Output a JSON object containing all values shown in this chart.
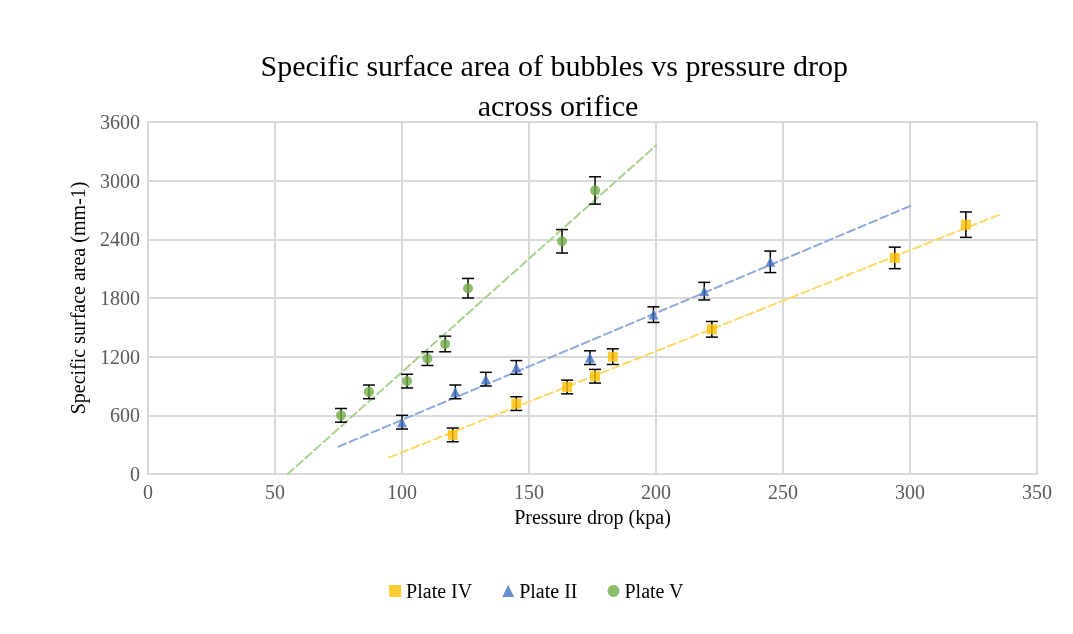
{
  "chart_data": {
    "type": "scatter",
    "title": "Specific surface area of bubbles vs pressure drop across orifice",
    "xlabel": "Pressure drop (kpa)",
    "ylabel": "Specific surface area (mm-1)",
    "xlim": [
      0,
      350
    ],
    "xticks": [
      0,
      50,
      100,
      150,
      200,
      250,
      300,
      350
    ],
    "ylim": [
      0,
      3600
    ],
    "yticks": [
      0,
      600,
      1200,
      1800,
      2400,
      3000,
      3600
    ],
    "grid": true,
    "legend": "bottom",
    "series": [
      {
        "name": "Plate IV",
        "color": "#ffc000",
        "marker": "square",
        "x": [
          120,
          145,
          165,
          176,
          183,
          222,
          294,
          322
        ],
        "values": [
          400,
          720,
          890,
          1000,
          1200,
          1480,
          2210,
          2550
        ],
        "errors": [
          70,
          70,
          70,
          70,
          80,
          80,
          110,
          130
        ]
      },
      {
        "name": "Plate II",
        "color": "#4472c4",
        "marker": "triangle",
        "x": [
          100,
          121,
          133,
          145,
          174,
          199,
          219,
          245
        ],
        "values": [
          530,
          840,
          970,
          1090,
          1190,
          1630,
          1870,
          2170
        ],
        "errors": [
          70,
          70,
          70,
          70,
          70,
          80,
          90,
          110
        ]
      },
      {
        "name": "Plate V",
        "color": "#70ad47",
        "marker": "circle",
        "x": [
          76,
          87,
          102,
          110,
          117,
          126,
          163,
          176
        ],
        "values": [
          600,
          840,
          950,
          1180,
          1330,
          1900,
          2380,
          2900
        ],
        "errors": [
          70,
          70,
          70,
          70,
          80,
          100,
          120,
          140
        ]
      },
      {
        "type": "line",
        "color": "#ffd966",
        "line_style": "dashed",
        "marker": "none",
        "x": [
          95,
          335
        ],
        "values": [
          170,
          2650
        ]
      },
      {
        "type": "line",
        "color": "#8faadc",
        "line_style": "dashed",
        "marker": "none",
        "x": [
          75,
          300
        ],
        "values": [
          280,
          2740
        ]
      },
      {
        "type": "line",
        "color": "#a9d18e",
        "line_style": "dashed",
        "marker": "none",
        "x": [
          55,
          200
        ],
        "values": [
          0,
          3360
        ]
      }
    ]
  }
}
